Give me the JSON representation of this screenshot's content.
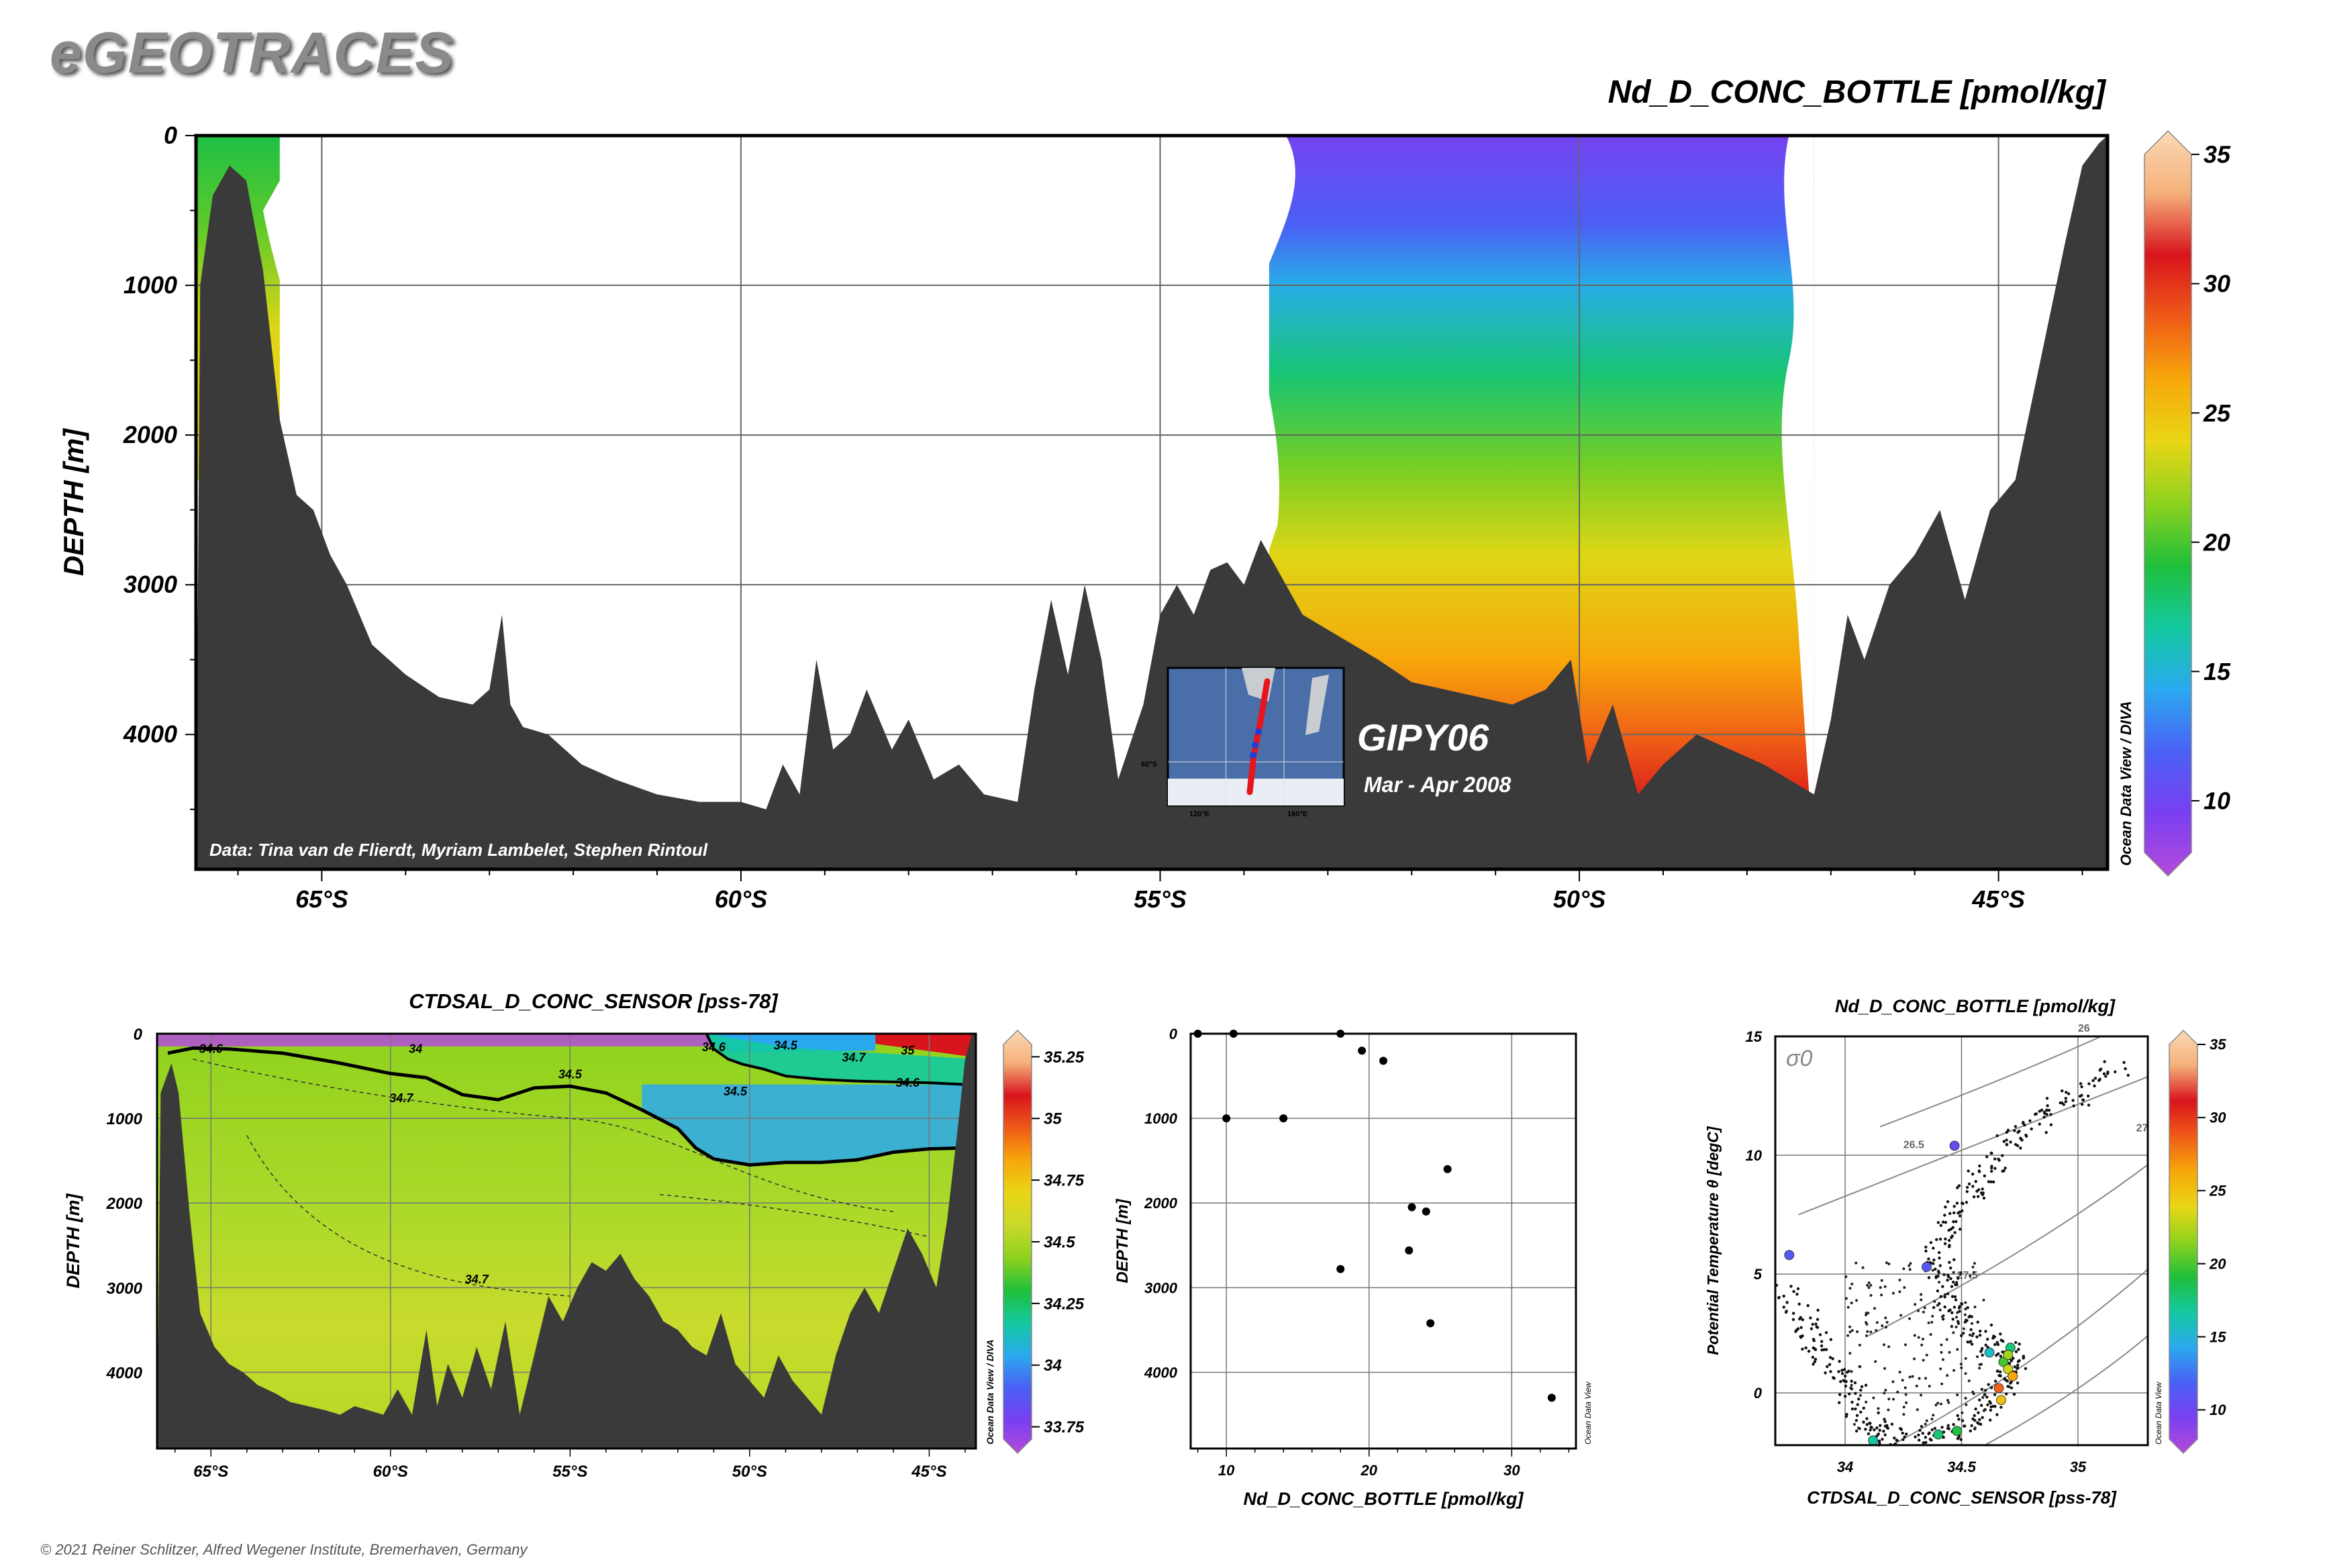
{
  "header": {
    "logo": "eGEOTRACES",
    "copyright": "© 2021 Reiner Schlitzer, Alfred Wegener Institute, Bremerhaven, Germany"
  },
  "main_section": {
    "title": "Nd_D_CONC_BOTTLE [pmol/kg]",
    "ylabel": "DEPTH [m]",
    "credit": "Data: Tina van de Flierdt, Myriam Lambelet, Stephen Rintoul",
    "cruise": "GIPY06",
    "dates": "Mar - Apr 2008",
    "odv_label": "Ocean Data View / DIVA",
    "inset_labels": [
      "60°S",
      "120°E",
      "160°E"
    ]
  },
  "colors": {
    "ocean_floor": "#3a3a3a",
    "frame": "#000000",
    "grid": "#666666",
    "track": "#e8141e",
    "stations": "#1f3fd8"
  },
  "chart_data": [
    {
      "id": "section_nd",
      "type": "heatmap",
      "title": "Nd_D_CONC_BOTTLE [pmol/kg]",
      "ylabel": "DEPTH [m]",
      "x_range": [
        -66.5,
        -43.7
      ],
      "xticks": [
        {
          "v": -65,
          "label": "65°S"
        },
        {
          "v": -60,
          "label": "60°S"
        },
        {
          "v": -55,
          "label": "55°S"
        },
        {
          "v": -50,
          "label": "50°S"
        },
        {
          "v": -45,
          "label": "45°S"
        }
      ],
      "y_range": [
        0,
        4900
      ],
      "yticks": [
        0,
        1000,
        2000,
        3000,
        4000
      ],
      "colorbar": {
        "min": 8,
        "max": 35,
        "ticks": [
          10,
          15,
          20,
          25,
          30,
          35
        ]
      },
      "bathymetry": [
        [
          -66.5,
          4900
        ],
        [
          -66.45,
          1000
        ],
        [
          -66.3,
          400
        ],
        [
          -66.1,
          200
        ],
        [
          -65.9,
          300
        ],
        [
          -65.7,
          900
        ],
        [
          -65.5,
          1900
        ],
        [
          -65.3,
          2400
        ],
        [
          -65.1,
          2500
        ],
        [
          -64.9,
          2800
        ],
        [
          -64.7,
          3000
        ],
        [
          -64.4,
          3400
        ],
        [
          -64.0,
          3600
        ],
        [
          -63.6,
          3750
        ],
        [
          -63.2,
          3800
        ],
        [
          -63.0,
          3700
        ],
        [
          -62.85,
          3200
        ],
        [
          -62.75,
          3800
        ],
        [
          -62.6,
          3950
        ],
        [
          -62.3,
          4000
        ],
        [
          -61.9,
          4200
        ],
        [
          -61.5,
          4300
        ],
        [
          -61.0,
          4400
        ],
        [
          -60.5,
          4450
        ],
        [
          -60.0,
          4450
        ],
        [
          -59.7,
          4500
        ],
        [
          -59.5,
          4200
        ],
        [
          -59.3,
          4400
        ],
        [
          -59.1,
          3500
        ],
        [
          -58.9,
          4100
        ],
        [
          -58.7,
          4000
        ],
        [
          -58.5,
          3700
        ],
        [
          -58.2,
          4100
        ],
        [
          -58.0,
          3900
        ],
        [
          -57.7,
          4300
        ],
        [
          -57.4,
          4200
        ],
        [
          -57.1,
          4400
        ],
        [
          -56.7,
          4450
        ],
        [
          -56.5,
          3700
        ],
        [
          -56.3,
          3100
        ],
        [
          -56.1,
          3600
        ],
        [
          -55.9,
          3000
        ],
        [
          -55.7,
          3500
        ],
        [
          -55.5,
          4300
        ],
        [
          -55.2,
          3800
        ],
        [
          -55.0,
          3200
        ],
        [
          -54.8,
          3000
        ],
        [
          -54.6,
          3200
        ],
        [
          -54.4,
          2900
        ],
        [
          -54.2,
          2850
        ],
        [
          -54.0,
          3000
        ],
        [
          -53.8,
          2700
        ],
        [
          -53.6,
          2900
        ],
        [
          -53.3,
          3200
        ],
        [
          -53.0,
          3300
        ],
        [
          -52.7,
          3400
        ],
        [
          -52.4,
          3500
        ],
        [
          -52.0,
          3650
        ],
        [
          -51.6,
          3700
        ],
        [
          -51.2,
          3750
        ],
        [
          -50.8,
          3800
        ],
        [
          -50.4,
          3700
        ],
        [
          -50.1,
          3500
        ],
        [
          -49.9,
          4200
        ],
        [
          -49.6,
          3800
        ],
        [
          -49.3,
          4400
        ],
        [
          -49.0,
          4200
        ],
        [
          -48.6,
          4000
        ],
        [
          -48.2,
          4100
        ],
        [
          -47.8,
          4200
        ],
        [
          -47.5,
          4300
        ],
        [
          -47.2,
          4400
        ],
        [
          -47.0,
          3900
        ],
        [
          -46.8,
          3200
        ],
        [
          -46.6,
          3500
        ],
        [
          -46.3,
          3000
        ],
        [
          -46.0,
          2800
        ],
        [
          -45.7,
          2500
        ],
        [
          -45.4,
          3100
        ],
        [
          -45.1,
          2500
        ],
        [
          -44.8,
          2300
        ],
        [
          -44.5,
          1500
        ],
        [
          -44.2,
          700
        ],
        [
          -44.0,
          200
        ],
        [
          -43.8,
          50
        ],
        [
          -43.7,
          0
        ],
        [
          -43.7,
          4900
        ]
      ],
      "columns": [
        {
          "x_start": -66.5,
          "x_end": -65.5,
          "values": [
            {
              "d": 0,
              "v": 19
            },
            {
              "d": 600,
              "v": 20.5
            },
            {
              "d": 1300,
              "v": 23.5
            },
            {
              "d": 2000,
              "v": 24
            },
            {
              "d": 2300,
              "v": 23
            }
          ]
        },
        {
          "x_start": -53.7,
          "x_end": -47.2,
          "values": [
            {
              "d": 0,
              "v": 10.5
            },
            {
              "d": 600,
              "v": 12.5
            },
            {
              "d": 1000,
              "v": 15
            },
            {
              "d": 1600,
              "v": 18
            },
            {
              "d": 2200,
              "v": 21
            },
            {
              "d": 2800,
              "v": 23.5
            },
            {
              "d": 3500,
              "v": 26
            },
            {
              "d": 4000,
              "v": 28
            },
            {
              "d": 4400,
              "v": 30
            },
            {
              "d": 4700,
              "v": 32
            }
          ]
        }
      ]
    },
    {
      "id": "section_sal",
      "type": "heatmap",
      "title": "CTDSAL_D_CONC_SENSOR [pss-78]",
      "ylabel": "DEPTH [m]",
      "x_range": [
        -66.5,
        -43.7
      ],
      "xticks": [
        {
          "v": -65,
          "label": "65°S"
        },
        {
          "v": -60,
          "label": "60°S"
        },
        {
          "v": -55,
          "label": "55°S"
        },
        {
          "v": -50,
          "label": "50°S"
        },
        {
          "v": -45,
          "label": "45°S"
        }
      ],
      "y_range": [
        0,
        4900
      ],
      "yticks": [
        0,
        1000,
        2000,
        3000,
        4000
      ],
      "colorbar": {
        "min": 33.7,
        "max": 35.3,
        "ticks": [
          33.75,
          34,
          34.25,
          34.5,
          34.75,
          35,
          35.25
        ]
      },
      "contour_labels": [
        {
          "x": -65.0,
          "d": 180,
          "t": "34.6"
        },
        {
          "x": -59.3,
          "d": 180,
          "t": "34"
        },
        {
          "x": -55.0,
          "d": 480,
          "t": "34.5"
        },
        {
          "x": -59.7,
          "d": 760,
          "t": "34.7"
        },
        {
          "x": -51.0,
          "d": 160,
          "t": "34.6"
        },
        {
          "x": -49.0,
          "d": 140,
          "t": "34.5"
        },
        {
          "x": -50.4,
          "d": 680,
          "t": "34.5"
        },
        {
          "x": -47.1,
          "d": 280,
          "t": "34.7"
        },
        {
          "x": -45.6,
          "d": 200,
          "t": "35"
        },
        {
          "x": -45.6,
          "d": 580,
          "t": "34.6"
        },
        {
          "x": -57.6,
          "d": 2900,
          "t": "34.7"
        }
      ],
      "bathymetry": [
        [
          -66.5,
          4900
        ],
        [
          -66.4,
          700
        ],
        [
          -66.1,
          350
        ],
        [
          -65.9,
          700
        ],
        [
          -65.6,
          2100
        ],
        [
          -65.3,
          3300
        ],
        [
          -64.9,
          3700
        ],
        [
          -64.5,
          3900
        ],
        [
          -64.1,
          4000
        ],
        [
          -63.7,
          4150
        ],
        [
          -63.2,
          4250
        ],
        [
          -62.8,
          4350
        ],
        [
          -62.3,
          4400
        ],
        [
          -61.8,
          4450
        ],
        [
          -61.4,
          4500
        ],
        [
          -61.0,
          4400
        ],
        [
          -60.6,
          4450
        ],
        [
          -60.2,
          4500
        ],
        [
          -59.8,
          4200
        ],
        [
          -59.4,
          4500
        ],
        [
          -59.0,
          3500
        ],
        [
          -58.7,
          4400
        ],
        [
          -58.4,
          3900
        ],
        [
          -58.0,
          4300
        ],
        [
          -57.6,
          3700
        ],
        [
          -57.2,
          4200
        ],
        [
          -56.8,
          3400
        ],
        [
          -56.4,
          4500
        ],
        [
          -56.0,
          3800
        ],
        [
          -55.6,
          3100
        ],
        [
          -55.2,
          3400
        ],
        [
          -54.8,
          3000
        ],
        [
          -54.4,
          2700
        ],
        [
          -54.0,
          2800
        ],
        [
          -53.6,
          2600
        ],
        [
          -53.2,
          2900
        ],
        [
          -52.8,
          3100
        ],
        [
          -52.4,
          3400
        ],
        [
          -52.0,
          3500
        ],
        [
          -51.6,
          3700
        ],
        [
          -51.2,
          3800
        ],
        [
          -50.8,
          3300
        ],
        [
          -50.4,
          3900
        ],
        [
          -50.0,
          4100
        ],
        [
          -49.6,
          4300
        ],
        [
          -49.2,
          3800
        ],
        [
          -48.8,
          4100
        ],
        [
          -48.4,
          4300
        ],
        [
          -48.0,
          4500
        ],
        [
          -47.6,
          3800
        ],
        [
          -47.2,
          3300
        ],
        [
          -46.8,
          3000
        ],
        [
          -46.4,
          3300
        ],
        [
          -46.0,
          2800
        ],
        [
          -45.6,
          2300
        ],
        [
          -45.2,
          2600
        ],
        [
          -44.8,
          3000
        ],
        [
          -44.5,
          2200
        ],
        [
          -44.2,
          1100
        ],
        [
          -44.0,
          300
        ],
        [
          -43.8,
          0
        ],
        [
          -43.7,
          0
        ],
        [
          -43.7,
          4900
        ]
      ],
      "contour_34_5": [
        [
          -66.2,
          230
        ],
        [
          -65.5,
          170
        ],
        [
          -64.5,
          180
        ],
        [
          -63.0,
          230
        ],
        [
          -61.5,
          340
        ],
        [
          -60.0,
          470
        ],
        [
          -59.0,
          520
        ],
        [
          -58.0,
          720
        ],
        [
          -57.0,
          780
        ],
        [
          -56.0,
          640
        ],
        [
          -55.0,
          620
        ],
        [
          -54.0,
          700
        ],
        [
          -53.0,
          900
        ],
        [
          -52.0,
          1120
        ],
        [
          -51.5,
          1350
        ],
        [
          -51.0,
          1480
        ],
        [
          -50.0,
          1550
        ],
        [
          -49.0,
          1520
        ],
        [
          -48.0,
          1520
        ],
        [
          -47.0,
          1490
        ],
        [
          -46.0,
          1400
        ],
        [
          -45.0,
          1360
        ],
        [
          -44.0,
          1350
        ]
      ],
      "contour_35_front": [
        [
          -51.2,
          0
        ],
        [
          -51.0,
          180
        ],
        [
          -50.6,
          300
        ],
        [
          -50.2,
          360
        ],
        [
          -49.6,
          420
        ],
        [
          -49.0,
          500
        ],
        [
          -48.0,
          540
        ],
        [
          -47.0,
          560
        ],
        [
          -46.0,
          570
        ],
        [
          -45.0,
          580
        ],
        [
          -44.0,
          600
        ]
      ]
    },
    {
      "id": "profile",
      "type": "scatter",
      "xlabel": "Nd_D_CONC_BOTTLE [pmol/kg]",
      "ylabel": "DEPTH [m]",
      "odv_label": "Ocean Data View",
      "x_range": [
        7.5,
        34.5
      ],
      "xticks": [
        10,
        20,
        30
      ],
      "y_range": [
        0,
        4900
      ],
      "yticks": [
        0,
        1000,
        2000,
        3000,
        4000
      ],
      "points": [
        [
          8,
          0
        ],
        [
          10.5,
          0
        ],
        [
          18,
          0
        ],
        [
          19.5,
          200
        ],
        [
          21,
          320
        ],
        [
          10,
          1000
        ],
        [
          14,
          1000
        ],
        [
          25.5,
          1600
        ],
        [
          23,
          2050
        ],
        [
          24,
          2100
        ],
        [
          22.8,
          2560
        ],
        [
          18,
          2780
        ],
        [
          24.3,
          3420
        ],
        [
          32.8,
          4300
        ]
      ]
    },
    {
      "id": "ts_diagram",
      "type": "scatter",
      "title": "Nd_D_CONC_BOTTLE [pmol/kg]",
      "xlabel": "CTDSAL_D_CONC_SENSOR [pss-78]",
      "ylabel": "Potential Temperature θ [degC]",
      "sigma_label": "σ0",
      "odv_label": "Ocean Data View",
      "x_range": [
        33.7,
        35.3
      ],
      "xticks": [
        34,
        34.5,
        35
      ],
      "y_range": [
        -2.2,
        15
      ],
      "yticks": [
        0,
        5,
        10,
        15
      ],
      "colorbar": {
        "min": 8,
        "max": 35,
        "ticks": [
          10,
          15,
          20,
          25,
          30,
          35
        ]
      },
      "isopycnals": [
        "26",
        "26.5",
        "27",
        "27.5"
      ],
      "colored_points": [
        [
          34.47,
          10.4,
          11
        ],
        [
          34.35,
          5.3,
          12
        ],
        [
          33.76,
          5.8,
          12
        ],
        [
          34.62,
          1.7,
          16
        ],
        [
          34.68,
          1.3,
          20
        ],
        [
          34.7,
          1.0,
          23
        ],
        [
          34.72,
          0.7,
          26
        ],
        [
          34.66,
          0.2,
          28
        ],
        [
          34.67,
          -0.3,
          25
        ],
        [
          34.71,
          1.9,
          18
        ],
        [
          34.7,
          1.6,
          22
        ],
        [
          34.12,
          -2.0,
          17
        ],
        [
          34.4,
          -1.75,
          18
        ],
        [
          34.48,
          -1.6,
          19
        ]
      ]
    }
  ]
}
